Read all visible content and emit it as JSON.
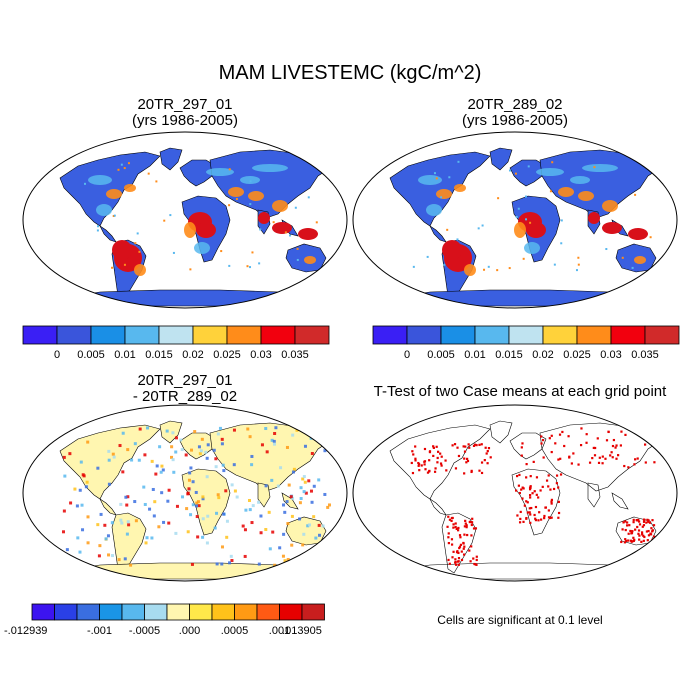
{
  "main_title": "MAM LIVESTEMC (kgC/m^2)",
  "panels": {
    "top_left": {
      "title_line1": "20TR_297_01",
      "title_line2": "(yrs 1986-2005)"
    },
    "top_right": {
      "title_line1": "20TR_289_02",
      "title_line2": "(yrs 1986-2005)"
    },
    "bottom_left": {
      "title_line1": "20TR_297_01",
      "title_line2": "- 20TR_289_02"
    },
    "bottom_right": {
      "title": "T-Test of two Case means at each grid point",
      "footnote": "Cells are significant at 0.1 level"
    }
  },
  "colorbar_abs": {
    "colors": [
      "#3a1ff5",
      "#3a55db",
      "#1a8fe6",
      "#58b8ee",
      "#bfe3f0",
      "#ffd23a",
      "#ff8c1a",
      "#f2000e",
      "#d12a2a"
    ],
    "labels": [
      "0",
      "0.005",
      "0.01",
      "0.015",
      "0.02",
      "0.025",
      "0.03",
      "0.035"
    ]
  },
  "colorbar_diff": {
    "colors": [
      "#3c14f0",
      "#2a40e6",
      "#3a6ee0",
      "#1a95e6",
      "#58b8ee",
      "#a8dcf0",
      "#fff6b0",
      "#ffe84a",
      "#ffc21a",
      "#ff9a14",
      "#ff5a14",
      "#e60000",
      "#c81e1e"
    ],
    "labels": [
      "-.012939",
      "-.001",
      "-.0005",
      ".000",
      ".0005",
      ".001",
      ".013905"
    ]
  },
  "map_colors": {
    "land_low": "#3a5fe0",
    "land_mid": "#58b8ee",
    "land_warm": "#ff8c1a",
    "land_high": "#d8101a",
    "diff_base": "#fff6b0",
    "diff_blue": "#58b8ee",
    "diff_orange": "#ff9a14",
    "diff_red": "#e60000",
    "sig": "#e60000"
  }
}
